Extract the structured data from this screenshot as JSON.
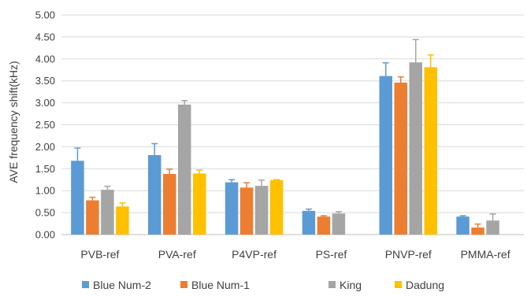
{
  "chart_data": {
    "type": "bar",
    "title": "",
    "xlabel": "",
    "ylabel": "AVE frequency shift(kHz)",
    "ylim": [
      0,
      5
    ],
    "ytick_step": 0.5,
    "yticks": [
      "0.00",
      "0.50",
      "1.00",
      "1.50",
      "2.00",
      "2.50",
      "3.00",
      "3.50",
      "4.00",
      "4.50",
      "5.00"
    ],
    "grid": true,
    "legend_position": "bottom",
    "categories": [
      "PVB-ref",
      "PVA-ref",
      "P4VP-ref",
      "PS-ref",
      "PNVP-ref",
      "PMMA-ref"
    ],
    "series": [
      {
        "name": "Blue Num-2",
        "color": "#5B9BD5",
        "values": [
          1.68,
          1.81,
          1.19,
          0.54,
          3.61,
          0.41
        ],
        "errors": [
          0.29,
          0.26,
          0.06,
          0.04,
          0.3,
          0.02
        ]
      },
      {
        "name": "Blue Num-1",
        "color": "#ED7D31",
        "values": [
          0.78,
          1.38,
          1.07,
          0.41,
          3.46,
          0.16
        ],
        "errors": [
          0.07,
          0.11,
          0.11,
          0.02,
          0.13,
          0.08
        ]
      },
      {
        "name": "King",
        "color": "#A5A5A5",
        "values": [
          1.02,
          2.96,
          1.11,
          0.48,
          3.92,
          0.32
        ],
        "errors": [
          0.08,
          0.09,
          0.13,
          0.04,
          0.52,
          0.15
        ]
      },
      {
        "name": "Dadung",
        "color": "#FFC000",
        "values": [
          0.64,
          1.39,
          1.24,
          null,
          3.81,
          null
        ],
        "errors": [
          0.08,
          0.08,
          0.01,
          null,
          0.28,
          null
        ]
      }
    ]
  }
}
